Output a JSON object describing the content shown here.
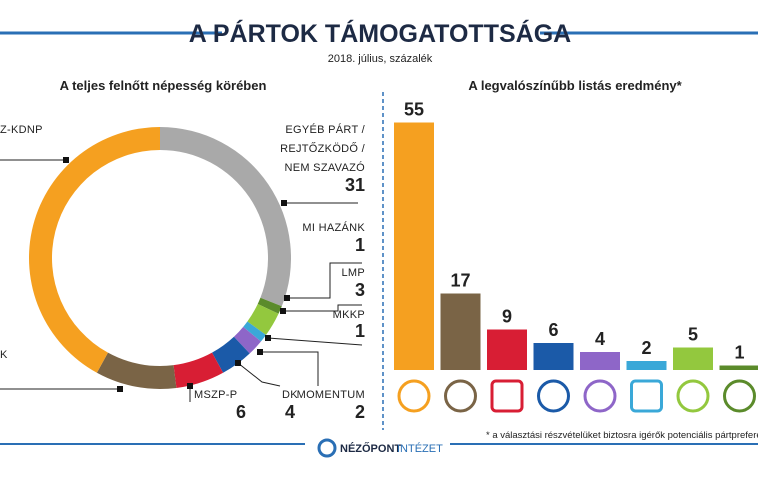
{
  "header": {
    "title": "A PÁRTOK TÁMOGATOTTSÁGA",
    "subtitle": "2018. július, százalék"
  },
  "chart_data": [
    {
      "type": "pie",
      "title": "A teljes felnőtt népesség körében",
      "categories": [
        [
          "EGYÉB PÁRT /",
          "REJTŐZKÖDŐ /",
          "NEM SZAVAZÓ"
        ],
        "MI HAZÁNK",
        "LMP",
        "MKKP",
        "MOMENTUM",
        "DK",
        "MSZP-P",
        "K",
        "Z-KDNP"
      ],
      "values": [
        31,
        1,
        3,
        1,
        2,
        4,
        6,
        10,
        42
      ],
      "colors": [
        "#a9a9a9",
        "#5b8b2b",
        "#93c83e",
        "#3aa8d8",
        "#8e66c8",
        "#1b5aa8",
        "#d81e34",
        "#7a6446",
        "#f5a020"
      ]
    },
    {
      "type": "bar",
      "title": "A legvalószínűbb listás eredmény*",
      "values": [
        55,
        17,
        9,
        6,
        4,
        2,
        5,
        1
      ],
      "colors": [
        "#f5a020",
        "#7a6446",
        "#d81e34",
        "#1b5aa8",
        "#8e66c8",
        "#3aa8d8",
        "#93c83e",
        "#5b8b2b"
      ]
    }
  ],
  "footer": {
    "note": "* a választási részvételüket biztosra igérők potenciális pártprefere",
    "brand": [
      "NÉZŐPONT",
      "INTÉZET"
    ]
  }
}
